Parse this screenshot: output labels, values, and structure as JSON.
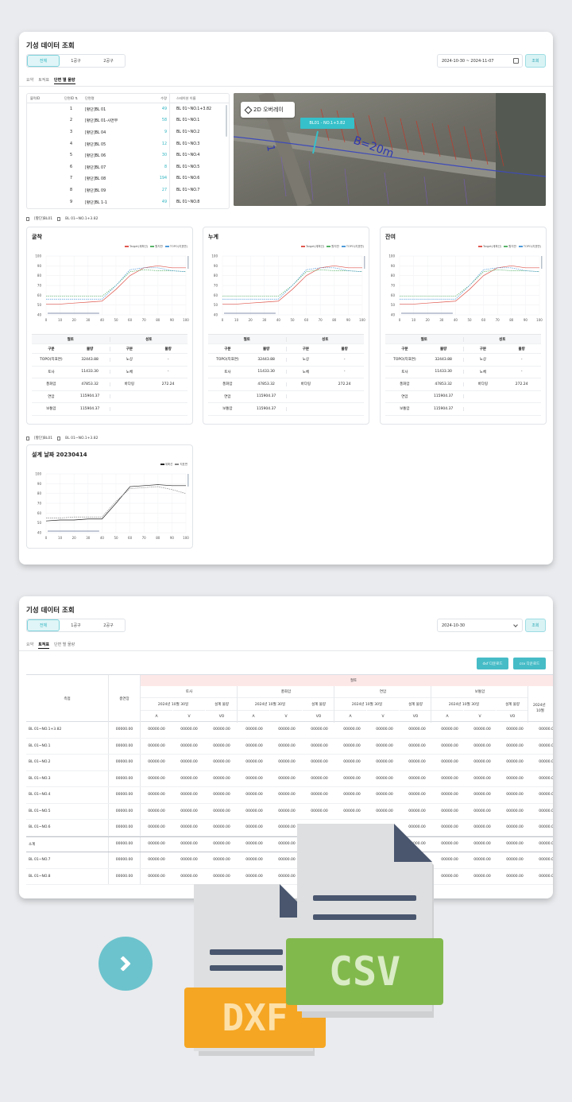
{
  "panel1": {
    "title": "기성 데이터 조회",
    "segments": [
      "전체",
      "1공구",
      "2공구"
    ],
    "date_range": "2024-10-30 ~ 2024-11-07",
    "query_label": "조회",
    "tabs": [
      "요약",
      "토적표",
      "단면 별 물량"
    ],
    "section_table": {
      "headers": {
        "line": "블럭ID",
        "no": "단면ID",
        "sort": "⇅",
        "name": "단면명",
        "qty": "수량",
        "station": "스테이션 이름"
      },
      "rows": [
        {
          "no": "1",
          "name": "[황단]BL 01",
          "qty": "49",
          "station": "BL 01~NO.1+3.82"
        },
        {
          "no": "2",
          "name": "[황단]BL 01-사면부",
          "qty": "58",
          "station": "BL 01~NO.1"
        },
        {
          "no": "3",
          "name": "[황단]BL 04",
          "qty": "9",
          "station": "BL 01~NO.2"
        },
        {
          "no": "4",
          "name": "[황단]BL 05",
          "qty": "12",
          "station": "BL 01~NO.3"
        },
        {
          "no": "5",
          "name": "[황단]BL 06",
          "qty": "30",
          "station": "BL 01~NO.4"
        },
        {
          "no": "6",
          "name": "[황단]BL 07",
          "qty": "8",
          "station": "BL 01~NO.5"
        },
        {
          "no": "7",
          "name": "[황단]BL 08",
          "qty": "194",
          "station": "BL 01~NO.6"
        },
        {
          "no": "8",
          "name": "[황단]BL 09",
          "qty": "27",
          "station": "BL 01~NO.7"
        },
        {
          "no": "9",
          "name": "[황단]BL 1-1",
          "qty": "49",
          "station": "BL 01~NO.8"
        }
      ]
    },
    "map": {
      "overlay_label": "2D 오버레이",
      "tag": "BL01 - NO.1+3.82",
      "road_text": "B=20m",
      "side_text": "1"
    },
    "crumb1": {
      "a": "[황단]BL01",
      "b": "BL 01~NO.1+3.82"
    },
    "charts": [
      {
        "title": "굴착"
      },
      {
        "title": "누계"
      },
      {
        "title": "잔여"
      }
    ],
    "legend": [
      "Target(계획선)",
      "원지반",
      "TOPO(지표면)"
    ],
    "qty_table": {
      "group_left": "절토",
      "group_right": "성토",
      "col_a": "구분",
      "col_b": "물량",
      "rows": [
        {
          "a": "TOPO(지표면)",
          "b": "32443.88",
          "c": "노상",
          "d": "-"
        },
        {
          "a": "토사",
          "b": "11433.30",
          "c": "노체",
          "d": "-"
        },
        {
          "a": "풍화암",
          "b": "47853.32",
          "c": "바다링",
          "d": "272.24"
        },
        {
          "a": "연암",
          "b": "115904.37",
          "c": "",
          "d": ""
        },
        {
          "a": "보통암",
          "b": "115904.37",
          "c": "",
          "d": ""
        }
      ]
    },
    "crumb2": {
      "a": "[황단]BL01",
      "b": "BL 01~NO.1+3.82"
    },
    "design_chart": {
      "title": "설계 날짜 20230414",
      "legend": [
        "계획선",
        "지표면"
      ]
    }
  },
  "panel2": {
    "title": "기성 데이터 조회",
    "segments": [
      "전체",
      "1공구",
      "2공구"
    ],
    "date": "2024-10-30",
    "query_label": "조회",
    "tabs": [
      "요약",
      "토적표",
      "단면 별 물량"
    ],
    "dxf_label": "dxf 다운로드",
    "csv_label": "csv 다운로드",
    "headers": {
      "station": "측점",
      "total": "총연장",
      "cut": "절토",
      "groups": [
        "토사",
        "풍화암",
        "연암",
        "보통암"
      ],
      "date": "2024년 10월 30일",
      "design": "설계 물량",
      "cols": [
        "A",
        "V",
        "VO"
      ],
      "partial_date": "2024년",
      "partial_month": "10월"
    },
    "rows": [
      {
        "name": "BL 01~NO.1+3.82",
        "v": "00000.00"
      },
      {
        "name": "BL 01~NO.1",
        "v": "00000.00"
      },
      {
        "name": "BL 01~NO.2",
        "v": "00000.00"
      },
      {
        "name": "BL 01~NO.3",
        "v": "00000.00"
      },
      {
        "name": "BL 01~NO.4",
        "v": "00000.00"
      },
      {
        "name": "BL 01~NO.5",
        "v": "00000.00"
      },
      {
        "name": "BL 01~NO.6",
        "v": "00000.00"
      },
      {
        "name": "소계",
        "v": "00000.00"
      },
      {
        "name": "BL 01~NO.7",
        "v": "00000.00"
      },
      {
        "name": "BL 01~NO.8",
        "v": "00000.00"
      }
    ]
  },
  "files": {
    "csv": "CSV",
    "dxf": "DXF"
  },
  "chart_data": [
    {
      "type": "line",
      "title": "굴착",
      "x": [
        0,
        10,
        20,
        30,
        40,
        50,
        60,
        70,
        80,
        90,
        100
      ],
      "ylim": [
        40,
        100
      ],
      "yticks": [
        40,
        50,
        60,
        70,
        80,
        90,
        100
      ],
      "series": [
        {
          "name": "Target(계획선)",
          "color": "#e0584f",
          "values": [
            51,
            51,
            52,
            53,
            54,
            66,
            80,
            88,
            90,
            88,
            88
          ]
        },
        {
          "name": "원지반",
          "color": "#58b368",
          "values": [
            59,
            59,
            59,
            59,
            59,
            70,
            84,
            86,
            85,
            85,
            84
          ]
        },
        {
          "name": "TOPO(지표면)",
          "color": "#4f9bd9",
          "values": [
            56,
            56,
            56,
            56,
            56,
            70,
            86,
            88,
            88,
            85,
            84
          ]
        }
      ]
    },
    {
      "type": "line",
      "title": "누계",
      "x": [
        0,
        10,
        20,
        30,
        40,
        50,
        60,
        70,
        80,
        90,
        100
      ],
      "ylim": [
        40,
        100
      ],
      "yticks": [
        40,
        50,
        60,
        70,
        80,
        90,
        100
      ],
      "series": [
        {
          "name": "Target(계획선)",
          "color": "#e0584f",
          "values": [
            51,
            51,
            52,
            53,
            54,
            66,
            80,
            88,
            90,
            88,
            88
          ]
        },
        {
          "name": "원지반",
          "color": "#58b368",
          "values": [
            59,
            59,
            59,
            59,
            59,
            70,
            84,
            86,
            85,
            85,
            84
          ]
        },
        {
          "name": "TOPO(지표면)",
          "color": "#4f9bd9",
          "values": [
            56,
            56,
            56,
            56,
            56,
            70,
            86,
            88,
            88,
            85,
            84
          ]
        }
      ]
    },
    {
      "type": "line",
      "title": "잔여",
      "x": [
        0,
        10,
        20,
        30,
        40,
        50,
        60,
        70,
        80,
        90,
        100
      ],
      "ylim": [
        40,
        100
      ],
      "yticks": [
        40,
        50,
        60,
        70,
        80,
        90,
        100
      ],
      "series": [
        {
          "name": "Target(계획선)",
          "color": "#e0584f",
          "values": [
            51,
            51,
            52,
            53,
            54,
            66,
            80,
            88,
            90,
            88,
            88
          ]
        },
        {
          "name": "원지반",
          "color": "#58b368",
          "values": [
            59,
            59,
            59,
            59,
            59,
            70,
            84,
            86,
            85,
            85,
            84
          ]
        },
        {
          "name": "TOPO(지표면)",
          "color": "#4f9bd9",
          "values": [
            56,
            56,
            56,
            56,
            56,
            70,
            86,
            88,
            88,
            85,
            84
          ]
        }
      ]
    },
    {
      "type": "line",
      "title": "설계 날짜 20230414",
      "x": [
        0,
        10,
        20,
        30,
        40,
        50,
        60,
        70,
        80,
        90,
        100
      ],
      "ylim": [
        40,
        100
      ],
      "yticks": [
        40,
        50,
        60,
        70,
        80,
        90,
        100
      ],
      "series": [
        {
          "name": "계획선",
          "color": "#222222",
          "values": [
            52,
            53,
            53,
            54,
            54,
            70,
            87,
            88,
            89,
            88,
            88
          ]
        },
        {
          "name": "지표면",
          "color": "#888888",
          "values": [
            55,
            55,
            56,
            56,
            56,
            72,
            85,
            86,
            87,
            84,
            80
          ]
        }
      ]
    }
  ]
}
